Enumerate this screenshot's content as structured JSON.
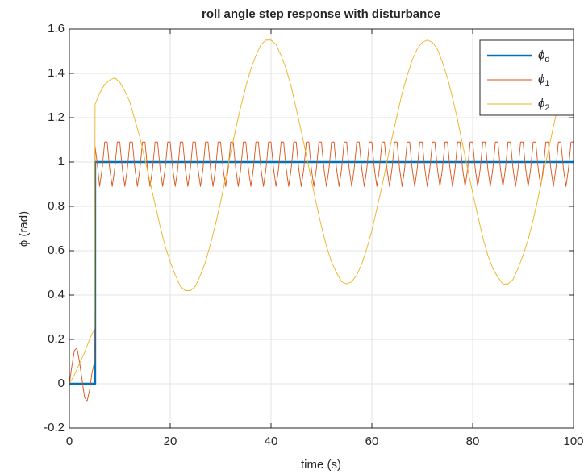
{
  "chart_data": {
    "type": "line",
    "title": "roll angle step response with disturbance",
    "xlabel": "time (s)",
    "ylabel": "ϕ (rad)",
    "xlim": [
      0,
      100
    ],
    "ylim": [
      -0.2,
      1.6
    ],
    "xticks": [
      0,
      20,
      40,
      60,
      80,
      100
    ],
    "yticks": [
      -0.2,
      0,
      0.2,
      0.4,
      0.6,
      0.8,
      1,
      1.2,
      1.4,
      1.6
    ],
    "grid": true,
    "legend": "northeast",
    "series": [
      {
        "name": "ϕd",
        "color": "#0072bd",
        "x": [
          0,
          5.1,
          5.1,
          100
        ],
        "values": [
          0,
          0,
          1,
          1
        ]
      },
      {
        "name": "ϕ1",
        "color": "#d95319",
        "x": [
          0,
          0.5,
          1,
          1.5,
          2,
          2.5,
          3,
          3.5,
          4,
          4.5,
          5,
          5.1,
          5.5,
          6,
          6.5,
          7,
          7.5,
          8,
          8.5,
          9,
          9.5,
          10,
          10.5,
          11,
          11.5,
          12,
          12.5,
          13,
          13.5,
          14,
          14.5,
          15,
          15.5,
          16,
          16.5,
          17,
          17.5,
          18,
          18.5,
          19,
          19.5,
          20,
          20.5,
          21,
          21.5,
          22,
          22.5,
          23,
          23.5,
          24,
          24.5,
          25,
          25.5,
          26,
          26.5,
          27,
          27.5,
          28,
          28.5,
          29,
          29.5,
          30,
          30.5,
          31,
          31.5,
          32,
          32.5,
          33,
          33.5,
          34,
          34.5,
          35,
          35.5,
          36,
          36.5,
          37,
          37.5,
          38,
          38.5,
          39,
          39.5,
          40,
          40.5,
          41,
          41.5,
          42,
          42.5,
          43,
          43.5,
          44,
          44.5,
          45,
          45.5,
          46,
          46.5,
          47,
          47.5,
          48,
          48.5,
          49,
          49.5,
          50,
          50.5,
          51,
          51.5,
          52,
          52.5,
          53,
          53.5,
          54,
          54.5,
          55,
          55.5,
          56,
          56.5,
          57,
          57.5,
          58,
          58.5,
          59,
          59.5,
          60,
          60.5,
          61,
          61.5,
          62,
          62.5,
          63,
          63.5,
          64,
          64.5,
          65,
          65.5,
          66,
          66.5,
          67,
          67.5,
          68,
          68.5,
          69,
          69.5,
          70,
          70.5,
          71,
          71.5,
          72,
          72.5,
          73,
          73.5,
          74,
          74.5,
          75,
          75.5,
          76,
          76.5,
          77,
          77.5,
          78,
          78.5,
          79,
          79.5,
          80,
          80.5,
          81,
          81.5,
          82,
          82.5,
          83,
          83.5,
          84,
          84.5,
          85,
          85.5,
          86,
          86.5,
          87,
          87.5,
          88,
          88.5,
          89,
          89.5,
          90,
          90.5,
          91,
          91.5,
          92,
          92.5,
          93,
          93.5,
          94,
          94.5,
          95,
          95.5,
          96,
          96.5,
          97,
          97.5,
          98,
          98.5,
          99,
          99.5,
          100
        ],
        "values": [
          0,
          0.08,
          0.15,
          0.16,
          0.1,
          0.02,
          -0.06,
          -0.08,
          -0.03,
          0.05,
          0.1,
          1.07,
          1.0,
          0.89,
          0.97,
          1.09,
          1.09,
          0.97,
          0.89,
          0.97,
          1.09,
          1.09,
          0.97,
          0.89,
          0.97,
          1.09,
          1.09,
          0.97,
          0.89,
          0.97,
          1.09,
          1.09,
          0.97,
          0.89,
          0.97,
          1.09,
          1.09,
          0.97,
          0.89,
          0.97,
          1.09,
          1.09,
          0.97,
          0.89,
          0.97,
          1.09,
          1.09,
          0.97,
          0.89,
          0.97,
          1.09,
          1.09,
          0.97,
          0.89,
          0.97,
          1.09,
          1.09,
          0.97,
          0.89,
          0.97,
          1.09,
          1.09,
          0.97,
          0.89,
          0.97,
          1.09,
          1.09,
          0.97,
          0.89,
          0.97,
          1.09,
          1.09,
          0.97,
          0.89,
          0.97,
          1.09,
          1.09,
          0.97,
          0.89,
          0.97,
          1.09,
          1.09,
          0.97,
          0.89,
          0.97,
          1.09,
          1.09,
          0.97,
          0.89,
          0.97,
          1.09,
          1.09,
          0.97,
          0.89,
          0.97,
          1.09,
          1.09,
          0.97,
          0.89,
          0.97,
          1.09,
          1.09,
          0.97,
          0.89,
          0.97,
          1.09,
          1.09,
          0.97,
          0.89,
          0.97,
          1.09,
          1.09,
          0.97,
          0.89,
          0.97,
          1.09,
          1.09,
          0.97,
          0.89,
          0.97,
          1.09,
          1.09,
          0.97,
          0.89,
          0.97,
          1.09,
          1.09,
          0.97,
          0.89,
          0.97,
          1.09,
          1.09,
          0.97,
          0.89,
          0.97,
          1.09,
          1.09,
          0.97,
          0.89,
          0.97,
          1.09,
          1.09,
          0.97,
          0.89,
          0.97,
          1.09,
          1.09,
          0.97,
          0.89,
          0.97,
          1.09,
          1.09,
          0.97,
          0.89,
          0.97,
          1.09,
          1.09,
          0.97,
          0.89,
          0.97,
          1.09,
          1.09,
          0.97,
          0.89,
          0.97,
          1.09,
          1.09,
          0.97,
          0.89,
          0.97,
          1.09,
          1.09,
          0.97,
          0.89,
          0.97,
          1.09,
          1.09,
          0.97,
          0.89,
          0.97,
          1.09,
          1.09,
          0.97,
          0.89,
          0.97,
          1.09,
          1.09,
          0.97,
          0.89,
          0.97,
          1.09,
          1.09,
          0.97,
          0.89,
          0.97,
          1.09,
          1.09,
          0.97,
          0.89,
          0.97,
          1.09,
          1.09
        ]
      },
      {
        "name": "ϕ2",
        "color": "#edb120",
        "x": [
          0,
          1,
          2,
          3,
          4,
          5,
          5.1,
          6,
          7,
          8,
          9,
          10,
          11,
          12,
          13,
          14,
          15,
          16,
          17,
          18,
          19,
          20,
          21,
          22,
          23,
          24,
          25,
          26,
          27,
          28,
          29,
          30,
          31,
          32,
          33,
          34,
          35,
          36,
          37,
          38,
          39,
          40,
          41,
          42,
          43,
          44,
          45,
          46,
          47,
          48,
          49,
          50,
          51,
          52,
          53,
          54,
          55,
          56,
          57,
          58,
          59,
          60,
          61,
          62,
          63,
          64,
          65,
          66,
          67,
          68,
          69,
          70,
          71,
          72,
          73,
          74,
          75,
          76,
          77,
          78,
          79,
          80,
          81,
          82,
          83,
          84,
          85,
          86,
          87,
          88,
          89,
          90,
          91,
          92,
          93,
          94,
          95,
          96,
          97,
          98,
          99,
          100
        ],
        "values": [
          0,
          0.04,
          0.09,
          0.14,
          0.2,
          0.25,
          1.26,
          1.31,
          1.35,
          1.37,
          1.38,
          1.36,
          1.32,
          1.27,
          1.19,
          1.11,
          1.01,
          0.91,
          0.81,
          0.71,
          0.62,
          0.55,
          0.49,
          0.44,
          0.42,
          0.42,
          0.44,
          0.49,
          0.55,
          0.63,
          0.72,
          0.82,
          0.93,
          1.04,
          1.15,
          1.25,
          1.34,
          1.42,
          1.48,
          1.53,
          1.55,
          1.55,
          1.53,
          1.48,
          1.42,
          1.34,
          1.24,
          1.14,
          1.03,
          0.92,
          0.81,
          0.71,
          0.62,
          0.55,
          0.5,
          0.46,
          0.45,
          0.46,
          0.49,
          0.54,
          0.61,
          0.69,
          0.79,
          0.89,
          1,
          1.11,
          1.21,
          1.31,
          1.39,
          1.46,
          1.51,
          1.54,
          1.55,
          1.54,
          1.51,
          1.45,
          1.38,
          1.29,
          1.19,
          1.08,
          0.97,
          0.86,
          0.76,
          0.66,
          0.58,
          0.52,
          0.48,
          0.45,
          0.45,
          0.47,
          0.52,
          0.58,
          0.65,
          0.74,
          0.84,
          0.95,
          1.05,
          1.16,
          1.26,
          1.35,
          1.43,
          1.49
        ]
      }
    ]
  }
}
